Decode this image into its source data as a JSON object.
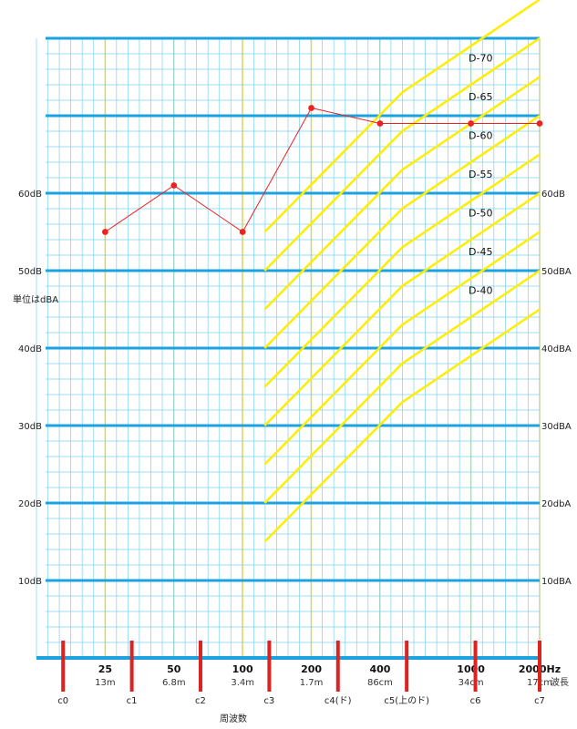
{
  "chart_data": {
    "type": "line",
    "title": "",
    "xlabel": "周波数",
    "ylabel": "単位はdBA",
    "x_scale": "log2",
    "xlim": [
      12.5,
      2000
    ],
    "ylim": [
      0,
      80
    ],
    "y_ticks": [
      {
        "value": 10,
        "left": "10dB",
        "right": "10dBA"
      },
      {
        "value": 20,
        "left": "20dB",
        "right": "20dbA"
      },
      {
        "value": 30,
        "left": "30dB",
        "right": "30dBA"
      },
      {
        "value": 40,
        "left": "40dB",
        "right": "40dBA"
      },
      {
        "value": 50,
        "left": "50dB",
        "right": "50dBA"
      },
      {
        "value": 60,
        "left": "60dB",
        "right": "60dB"
      }
    ],
    "x_ticks": [
      {
        "freq": 25,
        "label": "25",
        "wavelength": "13m"
      },
      {
        "freq": 50,
        "label": "50",
        "wavelength": "6.8m"
      },
      {
        "freq": 100,
        "label": "100",
        "wavelength": "3.4m"
      },
      {
        "freq": 200,
        "label": "200",
        "wavelength": "1.7m"
      },
      {
        "freq": 400,
        "label": "400",
        "wavelength": "86cm"
      },
      {
        "freq": 1000,
        "label": "1000",
        "wavelength": "34cm"
      },
      {
        "freq": 2000,
        "label": "2000Hz",
        "wavelength": "17cm"
      }
    ],
    "wavelength_label": "波長",
    "octaves": [
      {
        "name": "c0",
        "freq": 16.35
      },
      {
        "name": "c1",
        "freq": 32.7
      },
      {
        "name": "c2",
        "freq": 65.4
      },
      {
        "name": "c3",
        "freq": 130.8
      },
      {
        "name": "c4(ド)",
        "freq": 261.6
      },
      {
        "name": "c5(上のド)",
        "freq": 523.3
      },
      {
        "name": "c6",
        "freq": 1046.5
      },
      {
        "name": "c7",
        "freq": 2093
      }
    ],
    "measured": {
      "color": "#ee2222",
      "points": [
        [
          25,
          55
        ],
        [
          50,
          61
        ],
        [
          100,
          55
        ],
        [
          200,
          71
        ],
        [
          400,
          69
        ],
        [
          1000,
          69
        ],
        [
          2000,
          69
        ]
      ]
    },
    "d_curves": {
      "color": "#ffee00",
      "labels": [
        "D-70",
        "D-65",
        "D-60",
        "D-55",
        "D-50",
        "D-45",
        "D-40"
      ],
      "curves": [
        {
          "name": "D-70",
          "points": [
            [
              125,
              55
            ],
            [
              500,
              73
            ],
            [
              2000,
              85
            ]
          ]
        },
        {
          "name": "D-65",
          "points": [
            [
              125,
              50
            ],
            [
              500,
              68
            ],
            [
              2000,
              80
            ]
          ]
        },
        {
          "name": "D-60",
          "points": [
            [
              125,
              45
            ],
            [
              500,
              63
            ],
            [
              2000,
              75
            ]
          ]
        },
        {
          "name": "D-55",
          "points": [
            [
              125,
              40
            ],
            [
              500,
              58
            ],
            [
              2000,
              70
            ]
          ]
        },
        {
          "name": "D-50",
          "points": [
            [
              125,
              35
            ],
            [
              500,
              53
            ],
            [
              2000,
              65
            ]
          ]
        },
        {
          "name": "D-45",
          "points": [
            [
              125,
              30
            ],
            [
              500,
              48
            ],
            [
              2000,
              60
            ]
          ]
        },
        {
          "name": "D-40",
          "points": [
            [
              125,
              25
            ],
            [
              500,
              43
            ],
            [
              2000,
              55
            ]
          ]
        },
        {
          "name": "",
          "points": [
            [
              125,
              20
            ],
            [
              500,
              38
            ],
            [
              2000,
              50
            ]
          ]
        },
        {
          "name": "",
          "points": [
            [
              125,
              15
            ],
            [
              500,
              33
            ],
            [
              2000,
              45
            ]
          ]
        }
      ]
    },
    "colors": {
      "major_grid": "#1aa3e0",
      "minor_grid": "#7cd0f0",
      "vertical_grid": "#ffe066",
      "octave_marker": "#dd2222"
    }
  }
}
